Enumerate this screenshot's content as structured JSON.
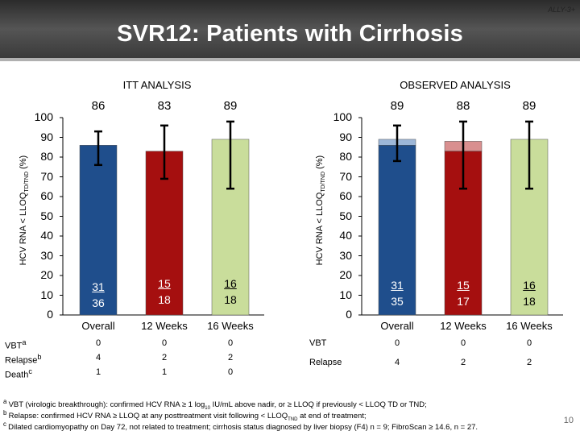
{
  "header": {
    "tag": "ALLY-3+",
    "title": "SVR12: Patients with Cirrhosis",
    "slide_number": "10"
  },
  "colors": {
    "overall": "#1f4e8c",
    "overall_extra": "#9db7d8",
    "weeks12": "#a50f0f",
    "weeks12_extra": "#d98f8f",
    "weeks16": "#c9dd9b",
    "header_bg": "#4a4a4a"
  },
  "y_axis": {
    "title_main": "HCV RNA < LLOQ",
    "title_sub": "TD/TND",
    "title_suffix": " (%)",
    "ticks": [
      "100",
      "90",
      "80",
      "70",
      "60",
      "50",
      "40",
      "30",
      "20",
      "10",
      "0"
    ]
  },
  "chart_data": [
    {
      "type": "bar",
      "title": "ITT ANALYSIS",
      "ylim": [
        0,
        100
      ],
      "categories": [
        "Overall",
        "12 Weeks",
        "16 Weeks"
      ],
      "values": [
        86,
        83,
        89
      ],
      "value_labels": [
        "86",
        "83",
        "89"
      ],
      "error_low": [
        76,
        69,
        64
      ],
      "error_high": [
        93,
        96,
        98
      ],
      "numerators": [
        "31",
        "15",
        "16"
      ],
      "denominators": [
        "36",
        "18",
        "18"
      ],
      "table": {
        "rows": [
          {
            "label": "VBT",
            "sup": "a",
            "values": [
              "0",
              "0",
              "0"
            ]
          },
          {
            "label": "Relapse",
            "sup": "b",
            "values": [
              "4",
              "2",
              "2"
            ]
          },
          {
            "label": "Death",
            "sup": "c",
            "values": [
              "1",
              "1",
              "0"
            ]
          }
        ]
      }
    },
    {
      "type": "bar",
      "title": "OBSERVED ANALYSIS",
      "ylim": [
        0,
        100
      ],
      "categories": [
        "Overall",
        "12 Weeks",
        "16 Weeks"
      ],
      "values": [
        89,
        88,
        89
      ],
      "base_values": [
        86,
        83,
        89
      ],
      "value_labels": [
        "89",
        "88",
        "89"
      ],
      "error_low": [
        78,
        64,
        64
      ],
      "error_high": [
        96,
        98,
        98
      ],
      "numerators": [
        "31",
        "15",
        "16"
      ],
      "denominators": [
        "35",
        "17",
        "18"
      ],
      "table": {
        "rows": [
          {
            "label": "VBT",
            "values": [
              "0",
              "0",
              "0"
            ]
          },
          {
            "label": "Relapse",
            "values": [
              "4",
              "2",
              "2"
            ]
          }
        ]
      }
    }
  ],
  "footnotes": {
    "a_prefix": "a ",
    "a_text": "VBT (virologic breakthrough): confirmed HCV RNA ≥ 1 log",
    "a_sub": "10",
    "a_rest": " IU/mL above nadir, or ≥ LLOQ if previously < LLOQ TD or TND;",
    "b_prefix": "b ",
    "b_text": "Relapse: confirmed HCV RNA ≥ LLOQ at any posttreatment visit following < LLOQ",
    "b_sub": "TND",
    "b_rest": " at end of treatment;",
    "c_prefix": "c ",
    "c_text": "Dilated cardiomyopathy on Day 72, not related to treatment; cirrhosis status diagnosed by liver biopsy (F4) n = 9; FibroScan ≥ 14.6, n = 27."
  }
}
